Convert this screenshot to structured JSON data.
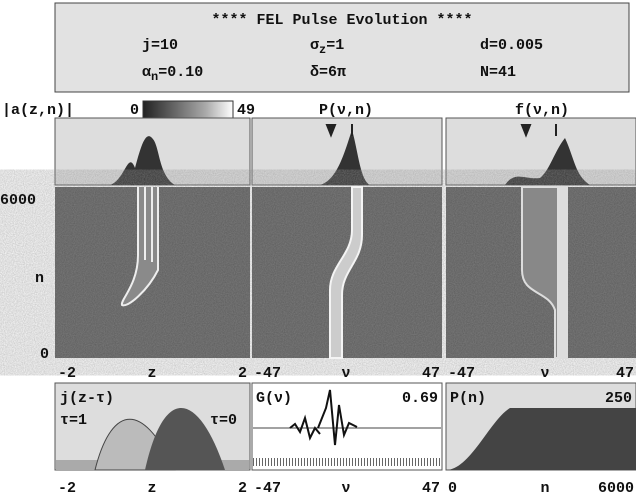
{
  "header": {
    "title": "****  FEL Pulse Evolution ****",
    "params": [
      {
        "symbol": "j",
        "sub": "",
        "rest": "=10"
      },
      {
        "symbol": "σ",
        "sub": "z",
        "rest": "=1"
      },
      {
        "symbol": "d",
        "sub": "",
        "rest": "=0.005"
      },
      {
        "symbol": "α",
        "sub": "n",
        "rest": "=0.10"
      },
      {
        "symbol": "δ",
        "sub": "",
        "rest": "=6π"
      },
      {
        "symbol": "N",
        "sub": "",
        "rest": "=41"
      }
    ]
  },
  "labels": {
    "field": "|a(z,n)|",
    "cbar_min": "0",
    "cbar_max": "49",
    "power": "P(ν,n)",
    "spectrum": "f(ν,n)"
  },
  "n_axis": {
    "top": "6000",
    "label": "n",
    "bottom": "0"
  },
  "mid_axes": [
    [
      "-2",
      "z",
      "2"
    ],
    [
      "-47",
      "ν",
      "47"
    ],
    [
      "-47",
      "ν",
      "47"
    ]
  ],
  "bottom_panels": {
    "current": {
      "title": "j(z-τ)",
      "left": "τ=1",
      "right": "τ=0"
    },
    "gain": {
      "title": "G(ν)",
      "value": "0.69"
    },
    "power": {
      "title": "P(n)",
      "value": "250"
    }
  },
  "bottom_axes": [
    [
      "-2",
      "z",
      "2"
    ],
    [
      "-47",
      "ν",
      "47"
    ],
    [
      "0",
      "n",
      "6000"
    ]
  ]
}
